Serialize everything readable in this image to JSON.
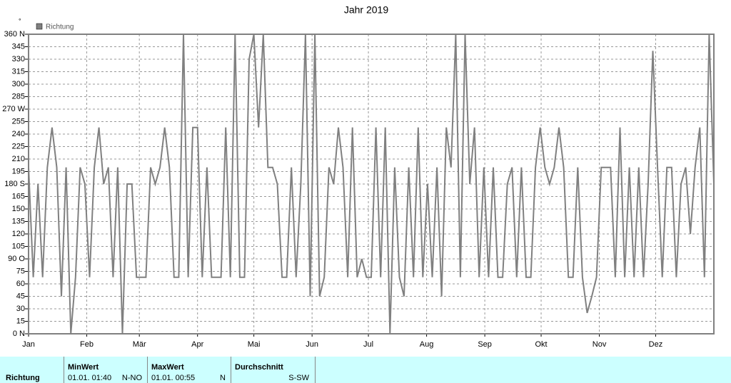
{
  "chart_data": {
    "type": "line",
    "title": "Jahr 2019",
    "unit": "°",
    "series": [
      {
        "name": "Richtung",
        "color": "#808080",
        "values": [
          200,
          68,
          180,
          68,
          200,
          248,
          200,
          45,
          200,
          0,
          68,
          200,
          180,
          68,
          200,
          248,
          180,
          200,
          68,
          200,
          0,
          180,
          180,
          68,
          68,
          68,
          200,
          180,
          200,
          248,
          200,
          68,
          68,
          360,
          68,
          248,
          248,
          68,
          200,
          68,
          68,
          68,
          248,
          68,
          360,
          68,
          68,
          330,
          360,
          248,
          360,
          200,
          200,
          180,
          68,
          68,
          200,
          68,
          180,
          360,
          45,
          360,
          45,
          68,
          200,
          180,
          248,
          200,
          68,
          248,
          68,
          90,
          68,
          68,
          248,
          68,
          248,
          0,
          200,
          68,
          45,
          200,
          68,
          248,
          68,
          180,
          68,
          200,
          45,
          248,
          200,
          360,
          68,
          360,
          180,
          248,
          68,
          200,
          68,
          200,
          68,
          68,
          180,
          200,
          68,
          200,
          68,
          68,
          200,
          248,
          200,
          180,
          200,
          248,
          200,
          68,
          68,
          200,
          68,
          25,
          45,
          68,
          200,
          200,
          200,
          68,
          248,
          68,
          200,
          68,
          200,
          68,
          180,
          340,
          200,
          68,
          200,
          200,
          68,
          180,
          200,
          120,
          200,
          248,
          68,
          360,
          180
        ]
      }
    ],
    "xlim": [
      0,
      365
    ],
    "xticks": [
      {
        "value": 0,
        "label": "Jan"
      },
      {
        "value": 31,
        "label": "Feb"
      },
      {
        "value": 59,
        "label": "Mär"
      },
      {
        "value": 90,
        "label": "Apr"
      },
      {
        "value": 120,
        "label": "Mai"
      },
      {
        "value": 151,
        "label": "Jun"
      },
      {
        "value": 181,
        "label": "Jul"
      },
      {
        "value": 212,
        "label": "Aug"
      },
      {
        "value": 243,
        "label": "Sep"
      },
      {
        "value": 273,
        "label": "Okt"
      },
      {
        "value": 304,
        "label": "Nov"
      },
      {
        "value": 334,
        "label": "Dez"
      }
    ],
    "ylim": [
      0,
      360
    ],
    "yticks": [
      {
        "value": 0,
        "label": "0 N"
      },
      15,
      30,
      45,
      60,
      75,
      {
        "value": 90,
        "label": "90 O"
      },
      105,
      120,
      135,
      150,
      165,
      {
        "value": 180,
        "label": "180 S"
      },
      195,
      210,
      225,
      240,
      255,
      {
        "value": 270,
        "label": "270 W"
      },
      285,
      300,
      315,
      330,
      345,
      {
        "value": 360,
        "label": "360 N"
      }
    ],
    "grid": true
  },
  "table": {
    "row_label": "Richtung",
    "columns": [
      {
        "header": "MinWert",
        "time": "01.01.  01:40",
        "value": "N-NO"
      },
      {
        "header": "MaxWert",
        "time": "01.01.  00:55",
        "value": "N"
      },
      {
        "header": "Durchschnitt",
        "value": "S-SW"
      }
    ]
  }
}
